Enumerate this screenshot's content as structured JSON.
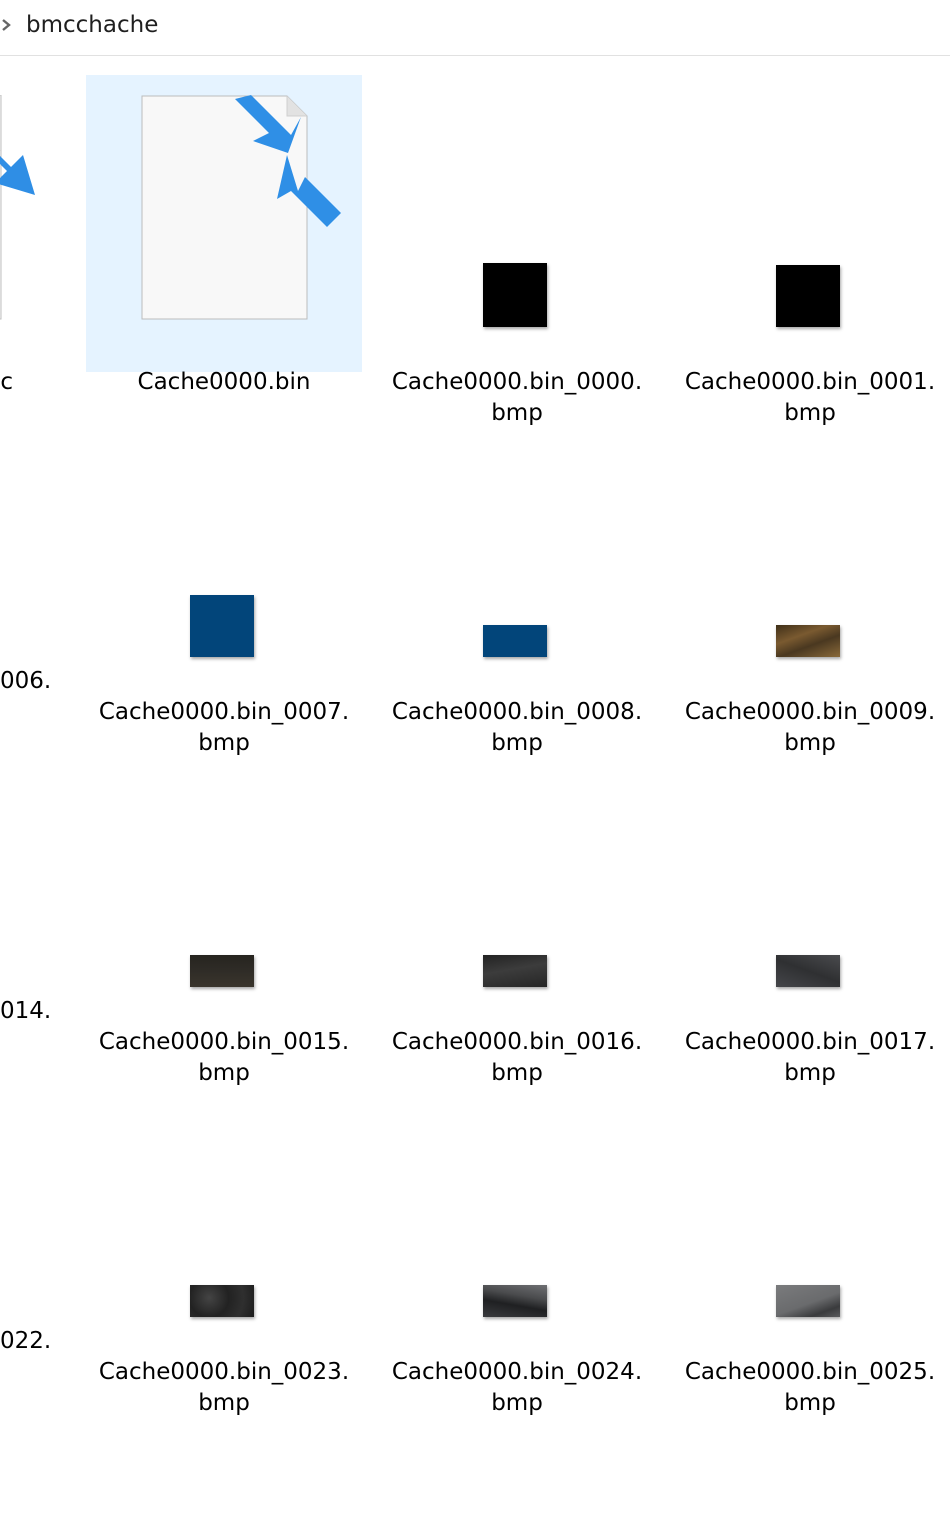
{
  "breadcrumb": {
    "folder": "bmcchache"
  },
  "items": [
    {
      "line1": "c",
      "line2": ""
    },
    {
      "line1": "Cache0000.bin",
      "line2": ""
    },
    {
      "line1": "Cache0000.bin_0000.",
      "line2": "bmp",
      "color": "#000000"
    },
    {
      "line1": "Cache0000.bin_0001.",
      "line2": "bmp",
      "color": "#000000"
    },
    {
      "line1": "006.",
      "line2": ""
    },
    {
      "line1": "Cache0000.bin_0007.",
      "line2": "bmp",
      "color": "#02457a"
    },
    {
      "line1": "Cache0000.bin_0008.",
      "line2": "bmp",
      "color": "#02457a"
    },
    {
      "line1": "Cache0000.bin_0009.",
      "line2": "bmp",
      "color": "#5a4424"
    },
    {
      "line1": "014.",
      "line2": ""
    },
    {
      "line1": "Cache0000.bin_0015.",
      "line2": "bmp",
      "color": "#2b2925"
    },
    {
      "line1": "Cache0000.bin_0016.",
      "line2": "bmp",
      "color": "#2f2f2f"
    },
    {
      "line1": "Cache0000.bin_0017.",
      "line2": "bmp",
      "color": "#3a3b3d"
    },
    {
      "line1": "022.",
      "line2": ""
    },
    {
      "line1": "Cache0000.bin_0023.",
      "line2": "bmp",
      "color": "#2a2b2b"
    },
    {
      "line1": "Cache0000.bin_0024.",
      "line2": "bmp",
      "color": "#3d3e40"
    },
    {
      "line1": "Cache0000.bin_0025.",
      "line2": "bmp",
      "color": "#6c6d6e"
    }
  ]
}
